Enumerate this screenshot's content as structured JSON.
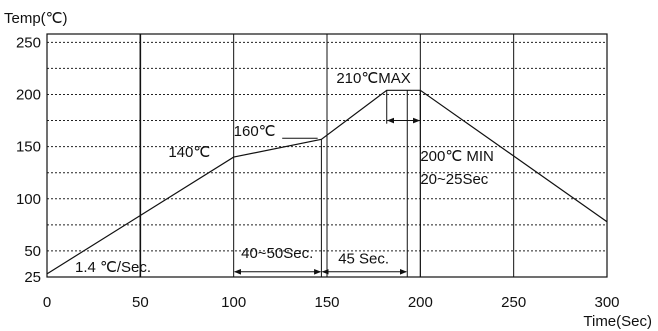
{
  "chart_data": {
    "type": "line",
    "ylabel": "Temp(℃)",
    "xlabel": "Time(Sec)",
    "xlim": [
      0,
      300
    ],
    "ylim": [
      25,
      258
    ],
    "x_ticks": [
      0,
      50,
      100,
      150,
      200,
      250,
      300
    ],
    "x_tick_labels": [
      "0",
      "50",
      "100",
      "150",
      "200",
      "250",
      "300"
    ],
    "y_ticks": [
      25,
      50,
      100,
      150,
      200,
      250
    ],
    "y_tick_labels": [
      "25",
      "50",
      "100",
      "150",
      "200",
      "250"
    ],
    "grid": true,
    "series": [
      {
        "values": [
          {
            "x": 0,
            "y": 28
          },
          {
            "x": 100,
            "y": 140
          },
          {
            "x": 147,
            "y": 157
          },
          {
            "x": 182,
            "y": 204
          },
          {
            "x": 200,
            "y": 204
          },
          {
            "x": 300,
            "y": 78
          }
        ]
      }
    ],
    "annotations": [
      {
        "id": "rate",
        "text": "1.4 ℃/Sec.",
        "x": 15,
        "y": 30
      },
      {
        "id": "temp140",
        "text": "140℃",
        "x": 65,
        "y": 140
      },
      {
        "id": "temp160",
        "text": "160℃",
        "x": 100,
        "y": 160
      },
      {
        "id": "peak",
        "text": "210℃MAX",
        "x": 155,
        "y": 211
      },
      {
        "id": "min200",
        "text": "200℃ MIN",
        "x": 200,
        "y": 136
      },
      {
        "id": "dur2025",
        "text": "20~25Sec",
        "x": 200,
        "y": 114
      },
      {
        "id": "dur4050",
        "text": "40~50Sec.",
        "x": 104,
        "y": 43
      },
      {
        "id": "dur45",
        "text": "45 Sec.",
        "x": 156,
        "y": 38
      }
    ],
    "spans": [
      {
        "from": 100,
        "to": 147,
        "y": 30
      },
      {
        "from": 147,
        "to": 193,
        "y": 30
      },
      {
        "from": 182,
        "to": 200,
        "y": 175
      }
    ]
  }
}
